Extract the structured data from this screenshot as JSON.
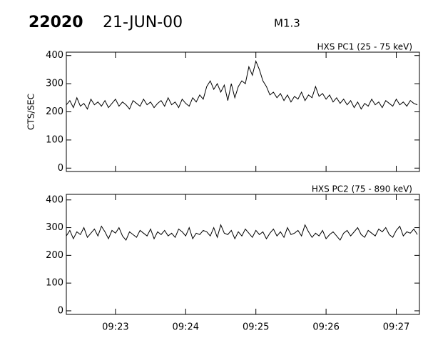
{
  "header": {
    "id": "22020",
    "date": "21-JUN-00",
    "class": "M1.3"
  },
  "chart_data": [
    {
      "type": "line",
      "title": "HXS PC1 (25 - 75 keV)",
      "y_label": "CTS/SEC",
      "color": "#000000",
      "xlim": [
        22.3,
        27.33
      ],
      "ylim": [
        -12,
        412
      ],
      "yticks": [
        0,
        100,
        200,
        300,
        400
      ],
      "x": [
        22.3,
        22.35,
        22.4,
        22.45,
        22.5,
        22.55,
        22.6,
        22.65,
        22.7,
        22.75,
        22.8,
        22.85,
        22.9,
        22.95,
        23.0,
        23.05,
        23.1,
        23.15,
        23.2,
        23.25,
        23.3,
        23.35,
        23.4,
        23.45,
        23.5,
        23.55,
        23.6,
        23.65,
        23.7,
        23.75,
        23.8,
        23.85,
        23.9,
        23.95,
        24.0,
        24.05,
        24.1,
        24.15,
        24.2,
        24.25,
        24.3,
        24.35,
        24.4,
        24.45,
        24.5,
        24.55,
        24.6,
        24.65,
        24.7,
        24.75,
        24.8,
        24.85,
        24.9,
        24.95,
        25.0,
        25.05,
        25.1,
        25.15,
        25.2,
        25.25,
        25.3,
        25.35,
        25.4,
        25.45,
        25.5,
        25.55,
        25.6,
        25.65,
        25.7,
        25.75,
        25.8,
        25.85,
        25.9,
        25.95,
        26.0,
        26.05,
        26.1,
        26.15,
        26.2,
        26.25,
        26.3,
        26.35,
        26.4,
        26.45,
        26.5,
        26.55,
        26.6,
        26.65,
        26.7,
        26.75,
        26.8,
        26.85,
        26.9,
        26.95,
        27.0,
        27.05,
        27.1,
        27.15,
        27.2,
        27.25,
        27.3
      ],
      "values": [
        225,
        240,
        215,
        250,
        220,
        230,
        210,
        245,
        225,
        235,
        220,
        240,
        215,
        230,
        245,
        220,
        235,
        225,
        210,
        240,
        230,
        220,
        245,
        225,
        235,
        215,
        230,
        240,
        220,
        250,
        225,
        235,
        215,
        245,
        230,
        220,
        250,
        235,
        260,
        245,
        290,
        310,
        280,
        300,
        270,
        295,
        240,
        300,
        250,
        290,
        310,
        300,
        360,
        330,
        380,
        350,
        310,
        290,
        260,
        270,
        250,
        265,
        240,
        260,
        235,
        255,
        245,
        270,
        240,
        260,
        250,
        290,
        255,
        265,
        245,
        260,
        235,
        250,
        230,
        245,
        225,
        240,
        215,
        235,
        210,
        230,
        220,
        245,
        225,
        235,
        215,
        240,
        230,
        220,
        245,
        225,
        235,
        220,
        240,
        230,
        225
      ]
    },
    {
      "type": "line",
      "title": "HXS PC2 (75 - 890 keV)",
      "color": "#000000",
      "xlim": [
        22.3,
        27.33
      ],
      "ylim": [
        -13,
        420
      ],
      "yticks": [
        0,
        100,
        200,
        300,
        400
      ],
      "xticks": [
        {
          "value": 23,
          "label": "09:23"
        },
        {
          "value": 24,
          "label": "09:24"
        },
        {
          "value": 25,
          "label": "09:25"
        },
        {
          "value": 26,
          "label": "09:26"
        },
        {
          "value": 27,
          "label": "09:27"
        }
      ],
      "x": [
        22.3,
        22.35,
        22.4,
        22.45,
        22.5,
        22.55,
        22.6,
        22.65,
        22.7,
        22.75,
        22.8,
        22.85,
        22.9,
        22.95,
        23.0,
        23.05,
        23.1,
        23.15,
        23.2,
        23.25,
        23.3,
        23.35,
        23.4,
        23.45,
        23.5,
        23.55,
        23.6,
        23.65,
        23.7,
        23.75,
        23.8,
        23.85,
        23.9,
        23.95,
        24.0,
        24.05,
        24.1,
        24.15,
        24.2,
        24.25,
        24.3,
        24.35,
        24.4,
        24.45,
        24.5,
        24.55,
        24.6,
        24.65,
        24.7,
        24.75,
        24.8,
        24.85,
        24.9,
        24.95,
        25.0,
        25.05,
        25.1,
        25.15,
        25.2,
        25.25,
        25.3,
        25.35,
        25.4,
        25.45,
        25.5,
        25.55,
        25.6,
        25.65,
        25.7,
        25.75,
        25.8,
        25.85,
        25.9,
        25.95,
        26.0,
        26.05,
        26.1,
        26.15,
        26.2,
        26.25,
        26.3,
        26.35,
        26.4,
        26.45,
        26.5,
        26.55,
        26.6,
        26.65,
        26.7,
        26.75,
        26.8,
        26.85,
        26.9,
        26.95,
        27.0,
        27.05,
        27.1,
        27.15,
        27.2,
        27.25,
        27.3
      ],
      "values": [
        270,
        290,
        260,
        285,
        275,
        300,
        265,
        280,
        295,
        270,
        305,
        285,
        260,
        290,
        280,
        300,
        270,
        255,
        285,
        275,
        265,
        290,
        280,
        270,
        295,
        260,
        285,
        275,
        290,
        270,
        280,
        265,
        295,
        285,
        270,
        300,
        260,
        280,
        275,
        290,
        285,
        270,
        300,
        265,
        310,
        280,
        275,
        290,
        260,
        285,
        270,
        295,
        280,
        265,
        290,
        275,
        285,
        260,
        280,
        295,
        270,
        285,
        265,
        300,
        275,
        280,
        290,
        270,
        310,
        285,
        265,
        280,
        270,
        290,
        260,
        275,
        285,
        270,
        255,
        280,
        290,
        270,
        285,
        300,
        275,
        265,
        290,
        280,
        270,
        295,
        285,
        300,
        275,
        265,
        290,
        305,
        270,
        285,
        280,
        295,
        275
      ]
    }
  ]
}
